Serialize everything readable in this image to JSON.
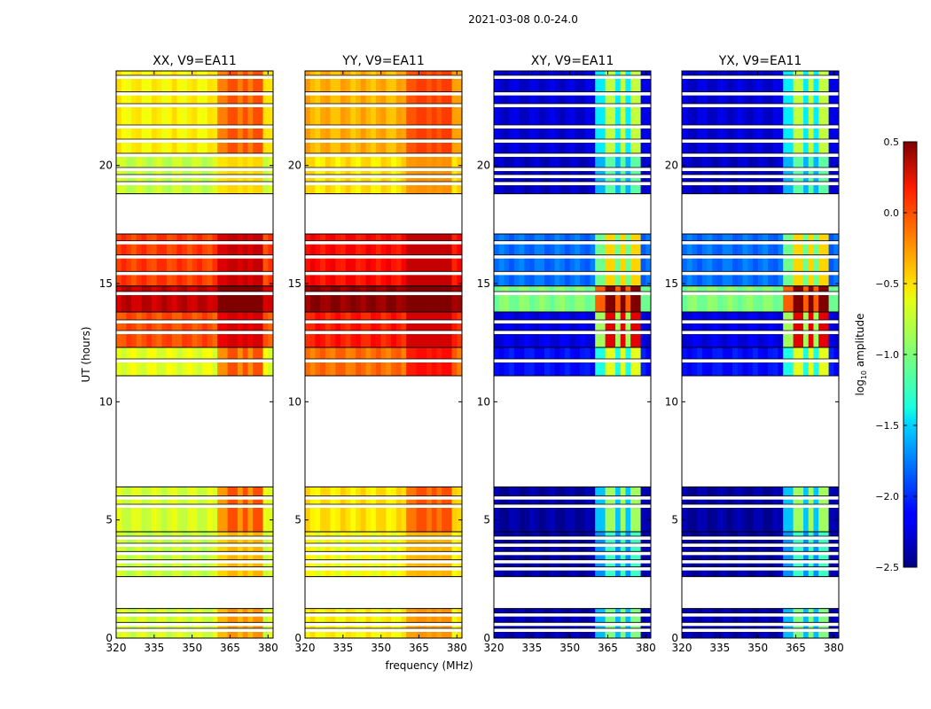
{
  "chart_data": {
    "type": "heatmap",
    "title": "2021-03-08 0.0-24.0",
    "xlabel": "frequency (MHz)",
    "ylabel": "UT (hours)",
    "xlim": [
      320,
      382
    ],
    "ylim": [
      0,
      24
    ],
    "x_ticks": [
      320,
      335,
      350,
      365,
      380
    ],
    "y_ticks": [
      0,
      5,
      10,
      15,
      20
    ],
    "colorbar": {
      "label": "log10 amplitude",
      "label_prefix": "log",
      "label_sub": "10",
      "label_suffix": " amplitude",
      "range": [
        -2.5,
        0.5
      ],
      "ticks": [
        0.5,
        0.0,
        -0.5,
        -1.0,
        -1.5,
        -2.0,
        -2.5
      ],
      "tick_labels": [
        "0.5",
        "0.0",
        "−0.5",
        "−1.0",
        "−1.5",
        "−2.0",
        "−2.5"
      ],
      "colormap": "jet"
    },
    "data_time_ranges_hours": [
      [
        0.0,
        1.25
      ],
      [
        2.6,
        6.4
      ],
      [
        11.1,
        17.1
      ],
      [
        18.8,
        24.0
      ]
    ],
    "rfi_band_mhz": [
      361,
      377
    ],
    "rfi_columns_mhz": [
      [
        365,
        368
      ],
      [
        370,
        372
      ],
      [
        375,
        378
      ]
    ],
    "panels": [
      {
        "title": "XX, V9=EA11",
        "polarization": "XX",
        "segments": [
          {
            "t": [
              0.0,
              1.25
            ],
            "base": -0.75,
            "rfi": -0.3
          },
          {
            "t": [
              2.6,
              4.5
            ],
            "base": -0.8,
            "rfi": -0.4
          },
          {
            "t": [
              4.5,
              6.4
            ],
            "base": -0.75,
            "rfi": -0.1
          },
          {
            "t": [
              11.1,
              12.3
            ],
            "base": -0.7,
            "rfi": -0.1
          },
          {
            "t": [
              12.3,
              13.8
            ],
            "base": -0.1,
            "rfi": 0.25
          },
          {
            "t": [
              13.8,
              14.9
            ],
            "base": 0.3,
            "rfi": 0.5
          },
          {
            "t": [
              14.9,
              17.1
            ],
            "base": -0.05,
            "rfi": 0.3
          },
          {
            "t": [
              18.8,
              20.5
            ],
            "base": -0.8,
            "rfi": -0.5
          },
          {
            "t": [
              20.5,
              24.0
            ],
            "base": -0.6,
            "rfi": -0.1
          }
        ]
      },
      {
        "title": "YY, V9=EA11",
        "polarization": "YY",
        "segments": [
          {
            "t": [
              0.0,
              1.25
            ],
            "base": -0.6,
            "rfi": -0.3
          },
          {
            "t": [
              2.6,
              4.5
            ],
            "base": -0.65,
            "rfi": -0.4
          },
          {
            "t": [
              4.5,
              6.4
            ],
            "base": -0.55,
            "rfi": -0.1
          },
          {
            "t": [
              11.1,
              12.3
            ],
            "base": -0.2,
            "rfi": 0.1
          },
          {
            "t": [
              12.3,
              13.8
            ],
            "base": 0.05,
            "rfi": 0.25
          },
          {
            "t": [
              13.8,
              14.9
            ],
            "base": 0.45,
            "rfi": 0.5
          },
          {
            "t": [
              14.9,
              17.1
            ],
            "base": 0.1,
            "rfi": 0.3
          },
          {
            "t": [
              18.8,
              20.5
            ],
            "base": -0.55,
            "rfi": -0.3
          },
          {
            "t": [
              20.5,
              24.0
            ],
            "base": -0.4,
            "rfi": -0.05
          }
        ]
      },
      {
        "title": "XY, V9=EA11",
        "polarization": "XY",
        "segments": [
          {
            "t": [
              0.0,
              1.25
            ],
            "base": -2.35,
            "rfi": -1.0
          },
          {
            "t": [
              2.6,
              4.5
            ],
            "base": -2.4,
            "rfi": -1.2
          },
          {
            "t": [
              4.5,
              6.4
            ],
            "base": -2.4,
            "rfi": -0.9
          },
          {
            "t": [
              11.1,
              12.3
            ],
            "base": -2.1,
            "rfi": -0.7
          },
          {
            "t": [
              12.3,
              13.8
            ],
            "base": -2.2,
            "rfi": 0.2
          },
          {
            "t": [
              13.8,
              14.9
            ],
            "base": -1.0,
            "rfi": 0.5
          },
          {
            "t": [
              14.9,
              17.1
            ],
            "base": -1.8,
            "rfi": -0.5
          },
          {
            "t": [
              18.8,
              20.5
            ],
            "base": -2.3,
            "rfi": -1.1
          },
          {
            "t": [
              20.5,
              24.0
            ],
            "base": -2.25,
            "rfi": -0.8
          }
        ]
      },
      {
        "title": "YX, V9=EA11",
        "polarization": "YX",
        "segments": [
          {
            "t": [
              0.0,
              1.25
            ],
            "base": -2.35,
            "rfi": -1.0
          },
          {
            "t": [
              2.6,
              4.5
            ],
            "base": -2.4,
            "rfi": -1.2
          },
          {
            "t": [
              4.5,
              6.4
            ],
            "base": -2.4,
            "rfi": -0.9
          },
          {
            "t": [
              11.1,
              12.3
            ],
            "base": -2.1,
            "rfi": -0.7
          },
          {
            "t": [
              12.3,
              13.8
            ],
            "base": -2.2,
            "rfi": 0.2
          },
          {
            "t": [
              13.8,
              14.9
            ],
            "base": -1.0,
            "rfi": 0.5
          },
          {
            "t": [
              14.9,
              17.1
            ],
            "base": -1.8,
            "rfi": -0.5
          },
          {
            "t": [
              18.8,
              20.5
            ],
            "base": -2.3,
            "rfi": -1.1
          },
          {
            "t": [
              20.5,
              24.0
            ],
            "base": -2.25,
            "rfi": -0.8
          }
        ]
      }
    ],
    "flagged_rows_hours": [
      0.3,
      0.55,
      0.95,
      2.9,
      3.2,
      3.55,
      3.9,
      4.2,
      5.55,
      5.9,
      11.7,
      12.9,
      13.35,
      14.55,
      15.4,
      16.1,
      16.7,
      19.2,
      19.5,
      19.8,
      20.4,
      21.0,
      21.6,
      22.5,
      23.0,
      23.7
    ]
  }
}
